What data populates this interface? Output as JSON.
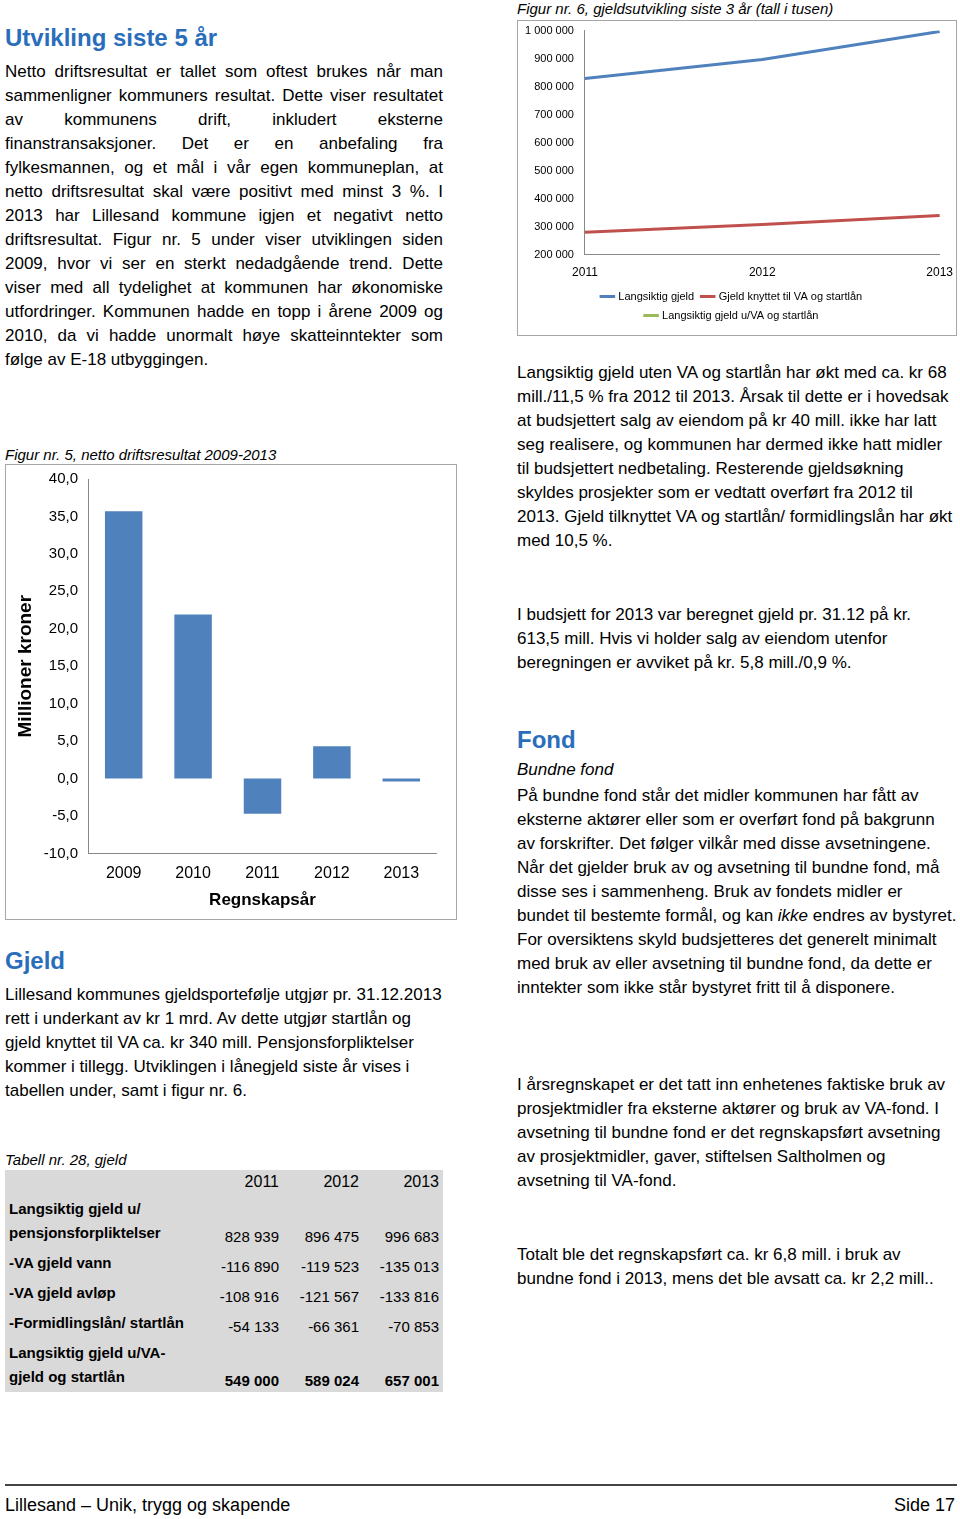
{
  "left": {
    "heading1": "Utvikling siste 5 år",
    "para1": "Netto driftsresultat er tallet som oftest brukes når man sammenligner kommuners resultat. Dette viser resultatet av kommunens drift, inkludert eksterne finanstransaksjoner. Det er en anbefaling fra fylkesmannen, og et mål i vår egen kommuneplan, at netto driftsresultat skal være positivt med minst 3 %. I 2013 har Lillesand kommune igjen et negativt netto driftsresultat. Figur nr. 5 under viser utviklingen siden 2009, hvor vi ser en sterkt nedadgående trend. Dette viser med all tydelighet at kommunen har økonomiske utfordringer. Kommunen hadde en topp i årene 2009 og 2010, da vi hadde unormalt høye skatteinntekter som følge av E-18 utbyggingen.",
    "fig5_caption": "Figur nr. 5, netto driftsresultat 2009-2013",
    "heading2": "Gjeld",
    "para2": "Lillesand kommunes gjeldsportefølje utgjør pr. 31.12.2013 rett i underkant av kr 1 mrd. Av dette utgjør startlån og gjeld knyttet til VA ca. kr 340 mill. Pensjonsforpliktelser kommer i tillegg. Utviklingen i lånegjeld siste år vises i tabellen under, samt i figur nr. 6.",
    "table_caption": "Tabell nr. 28, gjeld",
    "table": {
      "header": [
        "2011",
        "2012",
        "2013"
      ],
      "rows": [
        [
          "Langsiktig gjeld u/ pensjonsforpliktelser",
          "828 939",
          "896 475",
          "996 683"
        ],
        [
          "-VA gjeld vann",
          "-116 890",
          "-119 523",
          "-135 013"
        ],
        [
          "-VA gjeld avløp",
          "-108 916",
          "-121 567",
          "-133 816"
        ],
        [
          "-Formidlingslån/ startlån",
          "-54 133",
          "-66 361",
          "-70 853"
        ],
        [
          "Langsiktig gjeld u/VA-gjeld og startlån",
          "549 000",
          "589 024",
          "657 001"
        ]
      ]
    }
  },
  "right": {
    "fig6_caption": "Figur nr. 6, gjeldsutvikling siste 3 år (tall i tusen)",
    "para1": "Langsiktig gjeld uten VA og startlån har økt med ca. kr 68 mill./11,5 % fra 2012 til 2013. Årsak til dette er i hovedsak at budsjettert salg av eiendom på kr 40 mill. ikke har latt seg realisere, og kommunen har dermed ikke hatt midler til budsjettert nedbetaling. Resterende gjeldsøkning skyldes prosjekter som er vedtatt overført fra 2012 til 2013. Gjeld tilknyttet VA og startlån/ formidlingslån har økt med 10,5 %.",
    "para2": "I budsjett for 2013 var beregnet gjeld pr. 31.12 på kr. 613,5 mill. Hvis vi holder salg av eiendom utenfor beregningen er avviket på kr. 5,8 mill./0,9 %.",
    "heading": "Fond",
    "subheading": "Bundne fond",
    "para3": {
      "before": "På bundne fond står det midler kommunen har fått av eksterne aktører eller som er overført fond på bakgrunn av forskrifter. Det følger vilkår med disse avsetningene. Når det gjelder bruk av og avsetning til bundne fond, må disse ses i sammenheng. Bruk av fondets midler er bundet til bestemte formål, og kan ",
      "italic": "ikke",
      "after": " endres av bystyret. For oversiktens skyld budsjetteres det generelt minimalt med bruk av eller avsetning til bundne fond, da dette er inntekter som ikke står bystyret fritt til å disponere."
    },
    "para4": "I årsregnskapet er det tatt inn enhetenes faktiske bruk av prosjektmidler fra eksterne aktører og bruk av VA-fond. I avsetning til bundne fond er det regnskapsført avsetning av prosjektmidler, gaver, stiftelsen Saltholmen og avsetning til VA-fond.",
    "para5": "Totalt ble det regnskapsført ca. kr 6,8 mill. i bruk av bundne fond i 2013, mens det ble avsatt ca. kr 2,2 mill.."
  },
  "footer": {
    "left": "Lillesand – Unik, trygg og skapende",
    "right": "Side 17"
  },
  "chart_data": [
    {
      "type": "bar",
      "categories": [
        "2009",
        "2010",
        "2011",
        "2012",
        "2013"
      ],
      "values": [
        35.7,
        21.9,
        -4.7,
        4.3,
        -0.4
      ],
      "color": "#4f81bd",
      "y_label": "Millioner kroner",
      "x_label": "Regnskapsår",
      "ylim": [
        -10,
        40
      ],
      "yticks": [
        {
          "value": -10,
          "label": "-10,0"
        },
        {
          "value": -5,
          "label": "-5,0"
        },
        {
          "value": 0,
          "label": "0,0"
        },
        {
          "value": 5,
          "label": "5,0"
        },
        {
          "value": 10,
          "label": "10,0"
        },
        {
          "value": 15,
          "label": "15,0"
        },
        {
          "value": 20,
          "label": "20,0"
        },
        {
          "value": 25,
          "label": "25,0"
        },
        {
          "value": 30,
          "label": "30,0"
        },
        {
          "value": 35,
          "label": "35,0"
        },
        {
          "value": 40,
          "label": "40,0"
        }
      ],
      "grid": false
    },
    {
      "type": "line",
      "categories": [
        "2011",
        "2012",
        "2013"
      ],
      "series": [
        {
          "name": "Langsiktig gjeld",
          "color": "#4f81bd",
          "values": [
            828939,
            896475,
            996683
          ]
        },
        {
          "name": "Gjeld knyttet til VA og startlån",
          "color": "#c0504d",
          "values": [
            279939,
            307451,
            339682
          ]
        },
        {
          "name": "Langsiktig gjeld u/VA og startlån",
          "color": "#9bbb59",
          "values": [
            null,
            null,
            null
          ]
        }
      ],
      "ylim": [
        200000,
        1000000
      ],
      "yticks": [
        {
          "value": 200000,
          "label": "200 000"
        },
        {
          "value": 300000,
          "label": "300 000"
        },
        {
          "value": 400000,
          "label": "400 000"
        },
        {
          "value": 500000,
          "label": "500 000"
        },
        {
          "value": 600000,
          "label": "600 000"
        },
        {
          "value": 700000,
          "label": "700 000"
        },
        {
          "value": 800000,
          "label": "800 000"
        },
        {
          "value": 900000,
          "label": "900 000"
        },
        {
          "value": 1000000,
          "label": "1 000 000"
        }
      ],
      "legend": "bottom",
      "grid": false
    }
  ]
}
